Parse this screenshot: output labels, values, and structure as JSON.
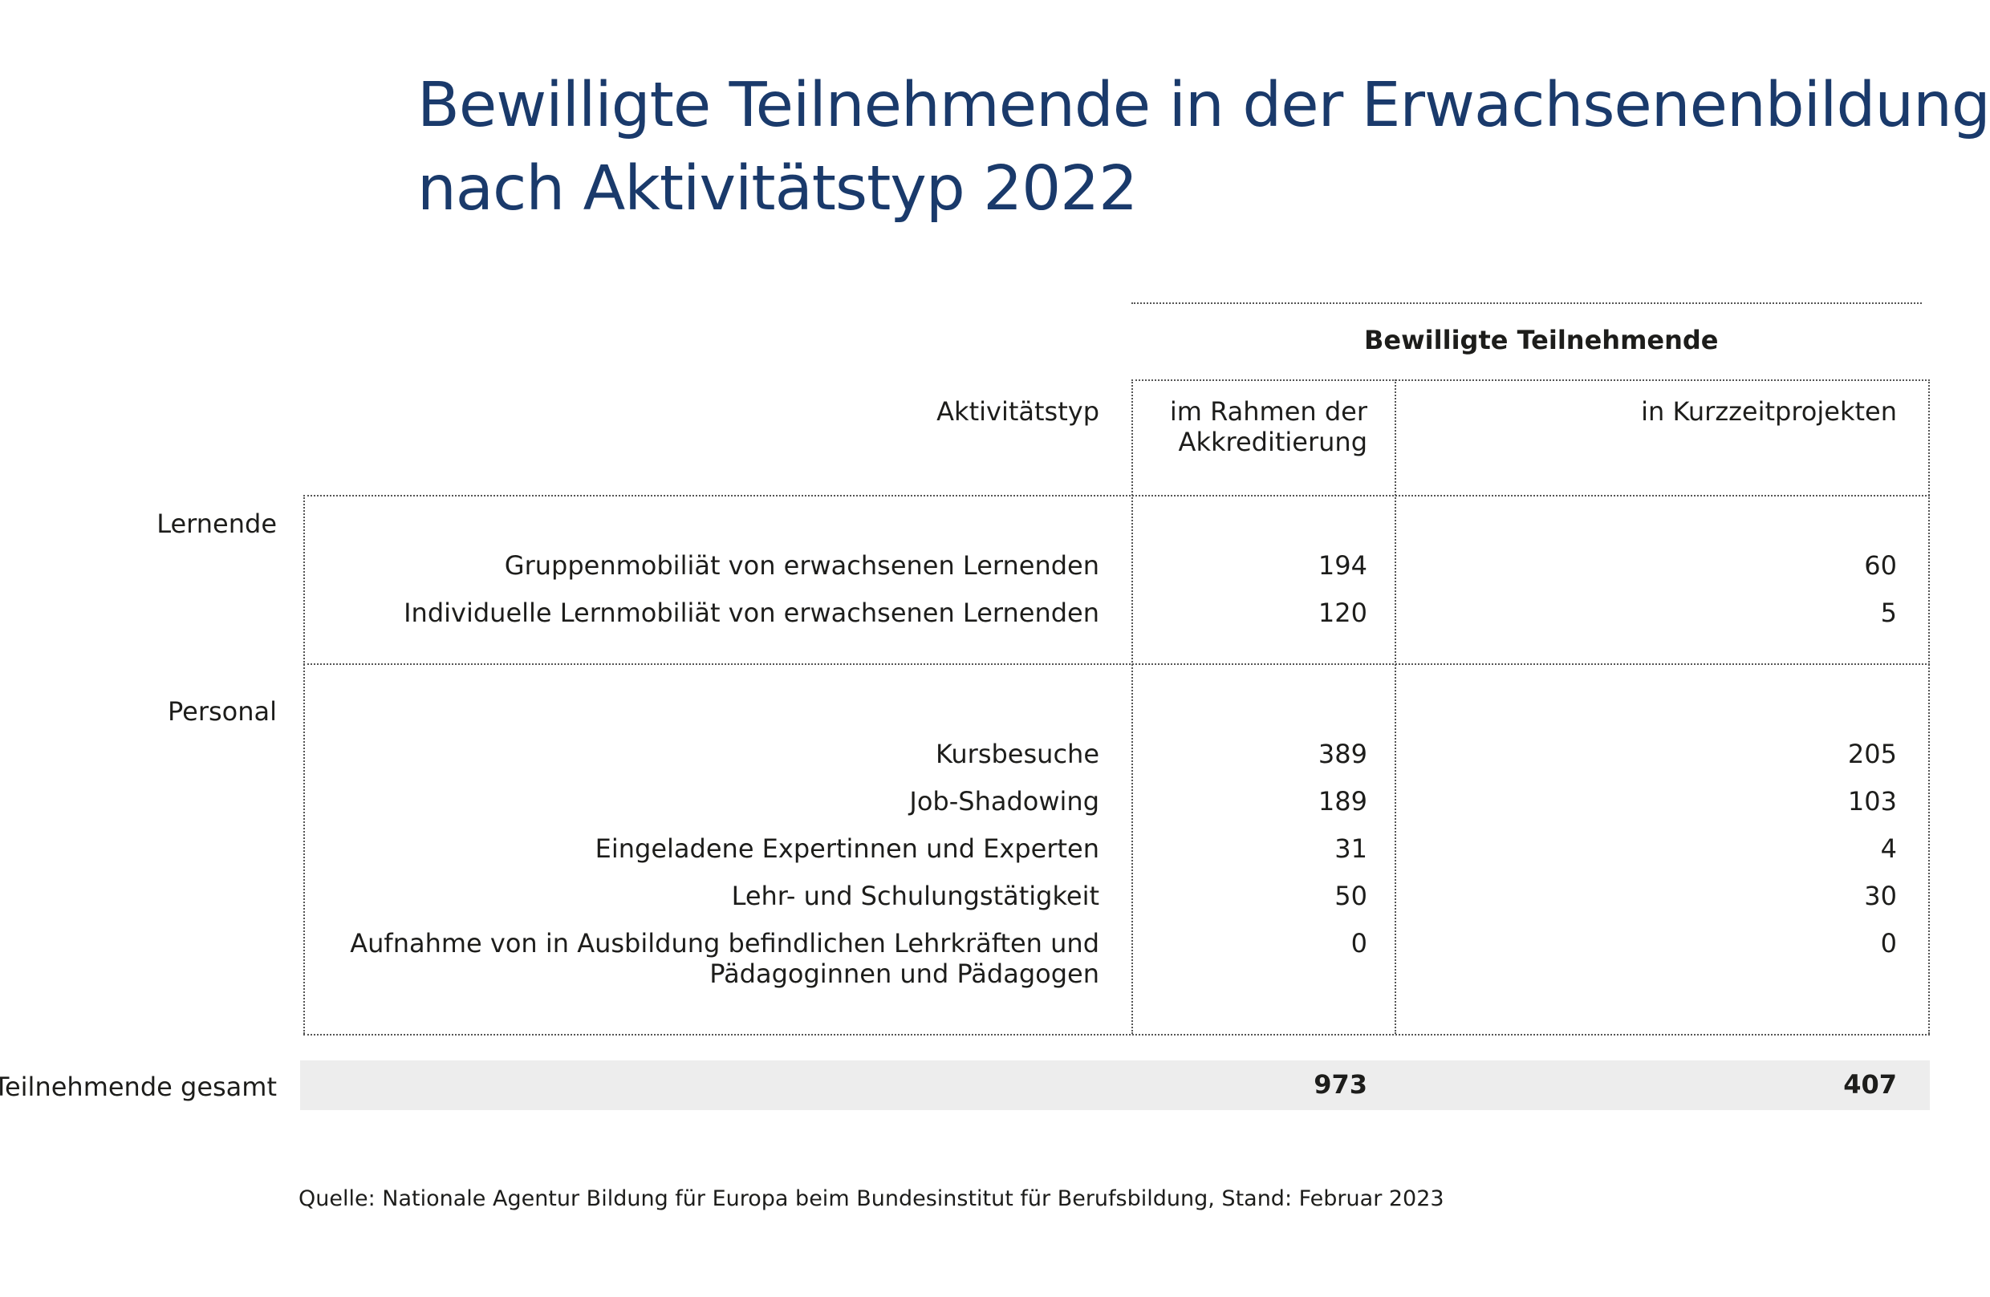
{
  "title_line1": "Bewilligte Teilnehmende in der Erwachsenenbildung",
  "title_line2": "nach Aktivitätstyp 2022",
  "chart_data": {
    "type": "table",
    "group_header": "Bewilligte Teilnehmende",
    "row_header": "Aktivitätstyp",
    "columns": [
      "im Rahmen der Akkreditierung",
      "in Kurzzeitprojekten"
    ],
    "col1_line1": "im Rahmen der",
    "col1_line2": "Akkreditierung",
    "groups": [
      {
        "name": "Lernende",
        "rows": [
          {
            "label": "Gruppenmobiliät von erwachsenen Lernenden",
            "values": [
              194,
              60
            ]
          },
          {
            "label": "Individuelle Lernmobiliät von erwachsenen Lernenden",
            "values": [
              120,
              5
            ]
          }
        ]
      },
      {
        "name": "Personal",
        "rows": [
          {
            "label": "Kursbesuche",
            "values": [
              389,
              205
            ]
          },
          {
            "label": "Job-Shadowing",
            "values": [
              189,
              103
            ]
          },
          {
            "label": "Eingeladene Expertinnen und Experten",
            "values": [
              31,
              4
            ]
          },
          {
            "label": "Lehr- und Schulungstätigkeit",
            "values": [
              50,
              30
            ]
          },
          {
            "label": "Aufnahme von in Ausbildung befindlichen Lehrkräften und",
            "label_line2": "Pädagoginnen und Pädagogen",
            "values": [
              0,
              0
            ]
          }
        ]
      }
    ],
    "total": {
      "label": "Teilnehmende gesamt",
      "values": [
        973,
        407
      ]
    }
  },
  "source": "Quelle: Nationale Agentur Bildung für Europa beim Bundesinstitut für Berufsbildung, Stand: Februar 2023"
}
